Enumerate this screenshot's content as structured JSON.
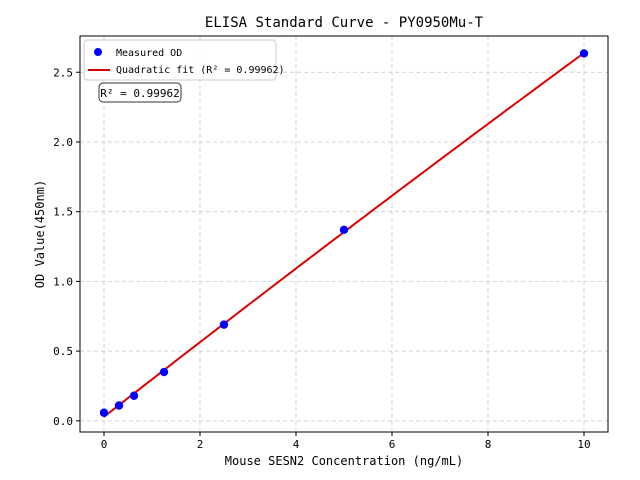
{
  "chart_data": {
    "type": "scatter",
    "title": "ELISA Standard Curve - PY0950Mu-T",
    "xlabel": "Mouse SESN2 Concentration (ng/mL)",
    "ylabel": "OD Value(450nm)",
    "xlim": [
      -0.5,
      10.5
    ],
    "ylim": [
      -0.08,
      2.76
    ],
    "xticks": [
      0,
      2,
      4,
      6,
      8,
      10
    ],
    "yticks": [
      0.0,
      0.5,
      1.0,
      1.5,
      2.0,
      2.5
    ],
    "xtick_labels": [
      "0",
      "2",
      "4",
      "6",
      "8",
      "10"
    ],
    "ytick_labels": [
      "0.0",
      "0.5",
      "1.0",
      "1.5",
      "2.0",
      "2.5"
    ],
    "grid": true,
    "legend_position": "top-left",
    "series": [
      {
        "name": "Measured OD",
        "kind": "scatter",
        "color": "#0000ff",
        "x": [
          0,
          0.3125,
          0.625,
          1.25,
          2.5,
          5,
          10
        ],
        "y": [
          0.058,
          0.11,
          0.18,
          0.35,
          0.69,
          1.37,
          2.635
        ]
      },
      {
        "name": "Quadratic fit (R² = 0.99962)",
        "kind": "line",
        "color": "#dd0000",
        "fit": "quadratic"
      }
    ],
    "annotation": "R² = 0.99962"
  }
}
